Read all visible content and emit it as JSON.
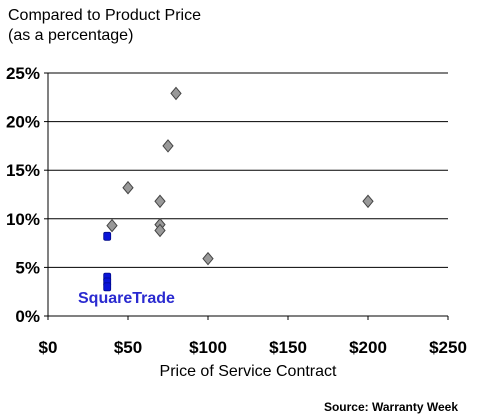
{
  "chart_data": {
    "type": "scatter",
    "title": "Compared to Product Price",
    "subtitle": "(as a percentage)",
    "xlabel": "Price of Service Contract",
    "ylabel": "",
    "xlim": [
      0,
      250
    ],
    "ylim": [
      0,
      25
    ],
    "x_ticks": [
      "$0",
      "$50",
      "$100",
      "$150",
      "$200",
      "$250"
    ],
    "y_ticks": [
      "0%",
      "5%",
      "10%",
      "15%",
      "20%",
      "25%"
    ],
    "grid": "horizontal",
    "series": [
      {
        "marker": "diamond",
        "color": "#999999",
        "points": [
          {
            "x": 40,
            "y": 9.3
          },
          {
            "x": 50,
            "y": 13.2
          },
          {
            "x": 70,
            "y": 11.8
          },
          {
            "x": 70,
            "y": 9.4
          },
          {
            "x": 70,
            "y": 8.8
          },
          {
            "x": 75,
            "y": 17.5
          },
          {
            "x": 80,
            "y": 22.9
          },
          {
            "x": 100,
            "y": 5.9
          },
          {
            "x": 200,
            "y": 11.8
          }
        ]
      },
      {
        "marker": "square",
        "color": "#0a14d8",
        "points": [
          {
            "x": 37,
            "y": 8.2
          },
          {
            "x": 37,
            "y": 4.0
          },
          {
            "x": 37,
            "y": 3.5
          },
          {
            "x": 37,
            "y": 3.0
          }
        ]
      }
    ],
    "annotation": "SquareTrade",
    "source": "Source: Warranty Week"
  }
}
